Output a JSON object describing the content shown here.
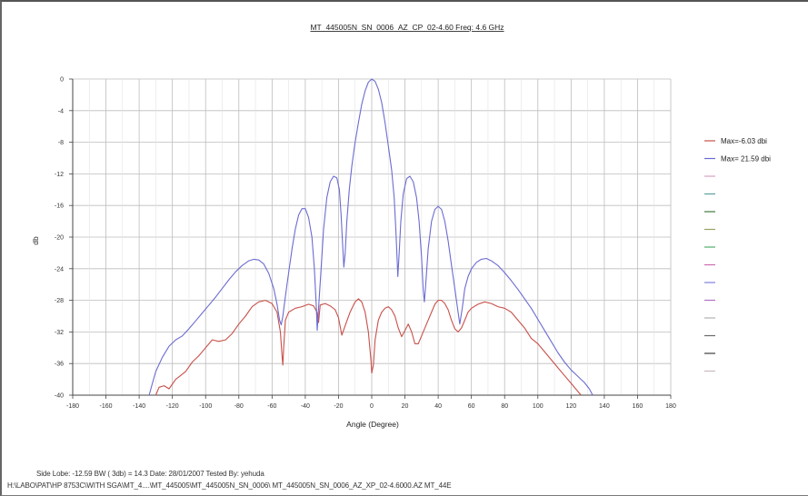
{
  "chart_data": {
    "type": "line",
    "title": "MT_445005N_SN_0006_AZ_CP_02-4.60 Freq: 4.6 GHz",
    "xlabel": "Angle (Degree)",
    "ylabel": "db",
    "xlim": [
      -180,
      180
    ],
    "ylim": [
      -40,
      0
    ],
    "xticks": [
      -180,
      -160,
      -140,
      -120,
      -100,
      -80,
      -60,
      -40,
      -20,
      0,
      20,
      40,
      60,
      80,
      100,
      120,
      140,
      160,
      180
    ],
    "yticks": [
      0,
      -4,
      -8,
      -12,
      -16,
      -20,
      -24,
      -28,
      -32,
      -36,
      -40
    ],
    "grid": true,
    "legend_position": "right",
    "series": [
      {
        "name": "Max=-6.03 dbi",
        "color": "#c8504a",
        "points": [
          [
            -130,
            -40
          ],
          [
            -128,
            -39
          ],
          [
            -125,
            -38.8
          ],
          [
            -122,
            -39.2
          ],
          [
            -118,
            -38
          ],
          [
            -115,
            -37.5
          ],
          [
            -112,
            -37
          ],
          [
            -108,
            -35.8
          ],
          [
            -104,
            -35
          ],
          [
            -100,
            -34
          ],
          [
            -96,
            -33
          ],
          [
            -92,
            -33.2
          ],
          [
            -88,
            -33
          ],
          [
            -84,
            -32.2
          ],
          [
            -80,
            -31
          ],
          [
            -76,
            -30
          ],
          [
            -72,
            -28.8
          ],
          [
            -68,
            -28.2
          ],
          [
            -64,
            -28
          ],
          [
            -60,
            -28.4
          ],
          [
            -57,
            -29.5
          ],
          [
            -55,
            -32
          ],
          [
            -54,
            -35
          ],
          [
            -53.5,
            -36.2
          ],
          [
            -53,
            -34
          ],
          [
            -52,
            -30.5
          ],
          [
            -50,
            -29.5
          ],
          [
            -46,
            -29
          ],
          [
            -42,
            -28.8
          ],
          [
            -38,
            -28.5
          ],
          [
            -35,
            -28.7
          ],
          [
            -33,
            -29.5
          ],
          [
            -32,
            -30.8
          ],
          [
            -31,
            -28.6
          ],
          [
            -28,
            -28.4
          ],
          [
            -25,
            -28.7
          ],
          [
            -22,
            -29.2
          ],
          [
            -20,
            -30.2
          ],
          [
            -18,
            -32.4
          ],
          [
            -16,
            -31.2
          ],
          [
            -13,
            -29.5
          ],
          [
            -10,
            -28.2
          ],
          [
            -8,
            -27.8
          ],
          [
            -6,
            -28.2
          ],
          [
            -4,
            -29.5
          ],
          [
            -2,
            -32
          ],
          [
            -0.5,
            -35.5
          ],
          [
            0,
            -37.2
          ],
          [
            1,
            -36.2
          ],
          [
            2,
            -33
          ],
          [
            4,
            -30.5
          ],
          [
            6,
            -29.5
          ],
          [
            8,
            -29
          ],
          [
            10,
            -28.8
          ],
          [
            12,
            -29.2
          ],
          [
            14,
            -30
          ],
          [
            16,
            -31.5
          ],
          [
            18,
            -32.6
          ],
          [
            20,
            -31.8
          ],
          [
            22,
            -31
          ],
          [
            24,
            -32
          ],
          [
            26,
            -33.5
          ],
          [
            28,
            -33.5
          ],
          [
            30,
            -32.5
          ],
          [
            33,
            -31
          ],
          [
            36,
            -29.5
          ],
          [
            38,
            -28.5
          ],
          [
            40,
            -28
          ],
          [
            42,
            -28
          ],
          [
            44,
            -28.4
          ],
          [
            46,
            -29.2
          ],
          [
            48,
            -30.5
          ],
          [
            50,
            -31.6
          ],
          [
            52,
            -32
          ],
          [
            54,
            -31.5
          ],
          [
            56,
            -30.5
          ],
          [
            58,
            -29.5
          ],
          [
            60,
            -29
          ],
          [
            64,
            -28.5
          ],
          [
            68,
            -28.2
          ],
          [
            72,
            -28.4
          ],
          [
            76,
            -28.8
          ],
          [
            80,
            -29
          ],
          [
            84,
            -29.5
          ],
          [
            88,
            -30.5
          ],
          [
            92,
            -31.5
          ],
          [
            96,
            -32.8
          ],
          [
            100,
            -33.5
          ],
          [
            104,
            -34.5
          ],
          [
            108,
            -35.5
          ],
          [
            112,
            -36.5
          ],
          [
            116,
            -37.5
          ],
          [
            120,
            -38.5
          ],
          [
            124,
            -39.5
          ],
          [
            126,
            -40
          ]
        ]
      },
      {
        "name": "Max= 21.59 dbi",
        "color": "#6b6bd2",
        "points": [
          [
            -134,
            -40
          ],
          [
            -132,
            -38.5
          ],
          [
            -130,
            -37
          ],
          [
            -126,
            -35.2
          ],
          [
            -122,
            -33.8
          ],
          [
            -118,
            -33
          ],
          [
            -114,
            -32.5
          ],
          [
            -110,
            -31.6
          ],
          [
            -106,
            -30.6
          ],
          [
            -102,
            -29.6
          ],
          [
            -98,
            -28.6
          ],
          [
            -94,
            -27.6
          ],
          [
            -90,
            -26.5
          ],
          [
            -86,
            -25.4
          ],
          [
            -82,
            -24.4
          ],
          [
            -78,
            -23.6
          ],
          [
            -74,
            -23
          ],
          [
            -71,
            -22.8
          ],
          [
            -68,
            -22.9
          ],
          [
            -65,
            -23.4
          ],
          [
            -62,
            -24.6
          ],
          [
            -59,
            -26.5
          ],
          [
            -57,
            -28.5
          ],
          [
            -55.5,
            -30.5
          ],
          [
            -54.5,
            -31.1
          ],
          [
            -53.5,
            -30
          ],
          [
            -52,
            -27.5
          ],
          [
            -50,
            -24.5
          ],
          [
            -48,
            -21.5
          ],
          [
            -46,
            -19
          ],
          [
            -44,
            -17.2
          ],
          [
            -42,
            -16.4
          ],
          [
            -40,
            -16.4
          ],
          [
            -38,
            -17.5
          ],
          [
            -36,
            -20
          ],
          [
            -34.5,
            -24
          ],
          [
            -33.3,
            -29
          ],
          [
            -32.8,
            -31.8
          ],
          [
            -32,
            -29
          ],
          [
            -30.5,
            -24
          ],
          [
            -29,
            -19
          ],
          [
            -27,
            -15
          ],
          [
            -25,
            -13
          ],
          [
            -23,
            -12.3
          ],
          [
            -21,
            -12.5
          ],
          [
            -19.5,
            -14
          ],
          [
            -18.5,
            -17
          ],
          [
            -17.5,
            -21
          ],
          [
            -16.8,
            -23.8
          ],
          [
            -16,
            -22
          ],
          [
            -15,
            -18
          ],
          [
            -13.5,
            -14
          ],
          [
            -12,
            -11
          ],
          [
            -10,
            -8
          ],
          [
            -8,
            -5.5
          ],
          [
            -6,
            -3.2
          ],
          [
            -4,
            -1.5
          ],
          [
            -2,
            -0.4
          ],
          [
            0,
            0
          ],
          [
            2,
            -0.3
          ],
          [
            4,
            -1.3
          ],
          [
            6,
            -3
          ],
          [
            8,
            -5.5
          ],
          [
            10,
            -8.5
          ],
          [
            12,
            -11.5
          ],
          [
            13.5,
            -15
          ],
          [
            14.5,
            -19
          ],
          [
            15.3,
            -23
          ],
          [
            15.7,
            -25
          ],
          [
            16.5,
            -22
          ],
          [
            17.5,
            -18
          ],
          [
            19,
            -14.5
          ],
          [
            21,
            -12.6
          ],
          [
            23,
            -12.3
          ],
          [
            25,
            -13
          ],
          [
            27,
            -15
          ],
          [
            28.5,
            -18
          ],
          [
            30,
            -22.5
          ],
          [
            31,
            -26.8
          ],
          [
            31.7,
            -28.2
          ],
          [
            32.5,
            -26
          ],
          [
            34,
            -21.5
          ],
          [
            36,
            -18
          ],
          [
            38,
            -16.5
          ],
          [
            40,
            -16.1
          ],
          [
            42,
            -16.5
          ],
          [
            44,
            -18
          ],
          [
            46,
            -20.5
          ],
          [
            48,
            -23.5
          ],
          [
            50,
            -26.5
          ],
          [
            52,
            -29.5
          ],
          [
            53,
            -31
          ],
          [
            54.5,
            -29
          ],
          [
            56,
            -26.5
          ],
          [
            58,
            -25
          ],
          [
            60,
            -24
          ],
          [
            63,
            -23.2
          ],
          [
            66,
            -22.8
          ],
          [
            69,
            -22.7
          ],
          [
            72,
            -23
          ],
          [
            76,
            -23.6
          ],
          [
            80,
            -24.5
          ],
          [
            84,
            -25.5
          ],
          [
            88,
            -26.6
          ],
          [
            92,
            -27.8
          ],
          [
            96,
            -29
          ],
          [
            100,
            -30.4
          ],
          [
            104,
            -31.8
          ],
          [
            108,
            -33.2
          ],
          [
            112,
            -34.6
          ],
          [
            116,
            -35.8
          ],
          [
            120,
            -36.8
          ],
          [
            124,
            -37.6
          ],
          [
            128,
            -38.4
          ],
          [
            131,
            -39.2
          ],
          [
            133,
            -40
          ]
        ]
      }
    ],
    "legend_empty_colors": [
      "#d9a0c0",
      "#5aa0a0",
      "#3f7a3f",
      "#9aa060",
      "#4fae6a",
      "#d06ab0",
      "#7f7fe0",
      "#b070c0",
      "#b2b2b2",
      "#6a6a6a",
      "#3e3e3e",
      "#c9b8c0"
    ]
  },
  "footer": {
    "line1": "Side Lobe: -12.59    BW ( 3db) = 14.3    Date: 28/01/2007    Tested By: yehuda",
    "line2": "H:\\LABO\\PAT\\HP 8753C\\WITH SGA\\MT_4....\\MT_445005\\MT_445005N_SN_0006\\    MT_445005N_SN_0006_AZ_XP_02-4.6000.AZ    MT_44E"
  }
}
